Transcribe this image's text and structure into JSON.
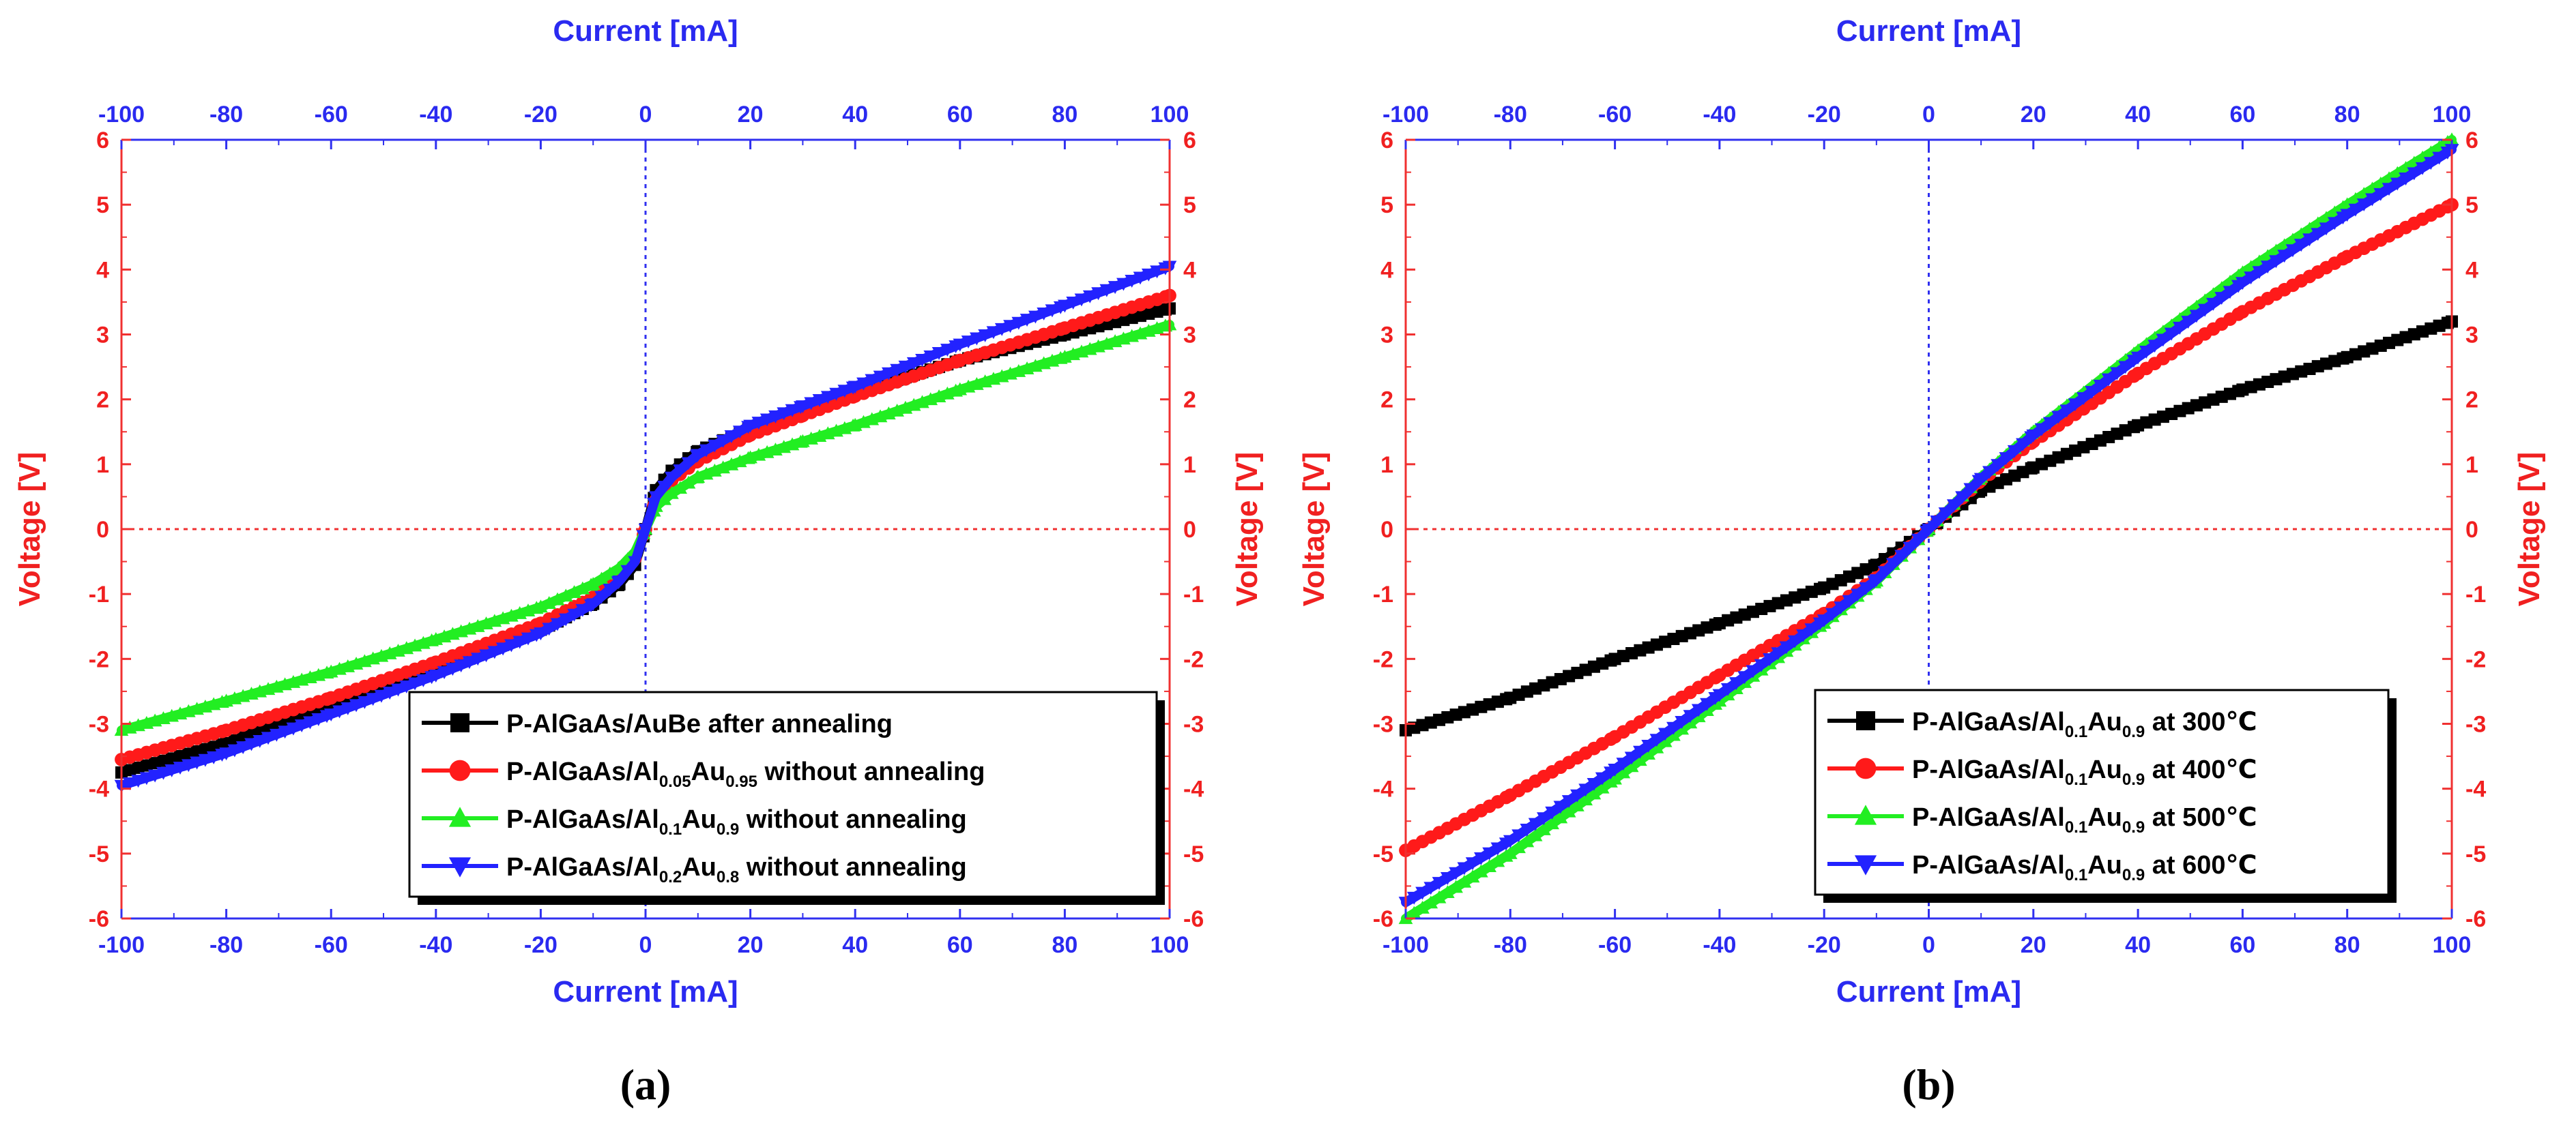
{
  "chart_data": [
    {
      "type": "line",
      "panel_label": "(a)",
      "xlabel_bottom": "Current [mA]",
      "xlabel_top": "Current [mA]",
      "ylabel_left": "Voltage [V]",
      "ylabel_right": "Voltage [V]",
      "xlim": [
        -100,
        100
      ],
      "ylim": [
        -6,
        6
      ],
      "x_ticks": [
        "-100",
        "-80",
        "-60",
        "-40",
        "-20",
        "0",
        "20",
        "40",
        "60",
        "80",
        "100"
      ],
      "y_ticks": [
        "6",
        "5",
        "4",
        "3",
        "2",
        "1",
        "0",
        "-1",
        "-2",
        "-3",
        "-4",
        "-5",
        "-6"
      ],
      "legend_position": "bottom-right",
      "series": [
        {
          "name": "P-AlGaAs/AuBe after annealing",
          "legend": {
            "pre": "P-AlGaAs/AuBe after annealing",
            "sub1": "",
            "mid": "",
            "sub2": "",
            "post": ""
          },
          "color": "#000000",
          "marker": "square",
          "x": [
            -100,
            -80,
            -60,
            -40,
            -20,
            -10,
            -5,
            -2,
            0,
            2,
            5,
            10,
            20,
            30,
            40,
            60,
            80,
            100
          ],
          "y": [
            -3.75,
            -3.3,
            -2.75,
            -2.2,
            -1.55,
            -1.15,
            -0.85,
            -0.55,
            0.0,
            0.6,
            0.9,
            1.2,
            1.55,
            1.85,
            2.1,
            2.6,
            3.0,
            3.4
          ]
        },
        {
          "name": "P-AlGaAs/Al0.05Au0.95 without annealing",
          "legend": {
            "pre": "P-AlGaAs/Al",
            "sub1": "0.05",
            "mid": "Au",
            "sub2": "0.95",
            "post": " without annealing"
          },
          "color": "#ff1a1a",
          "marker": "circle",
          "x": [
            -100,
            -80,
            -60,
            -40,
            -20,
            -10,
            -5,
            -2,
            0,
            2,
            5,
            10,
            20,
            30,
            40,
            60,
            80,
            100
          ],
          "y": [
            -3.55,
            -3.1,
            -2.6,
            -2.05,
            -1.45,
            -1.05,
            -0.75,
            -0.45,
            0.0,
            0.45,
            0.75,
            1.05,
            1.45,
            1.75,
            2.05,
            2.6,
            3.1,
            3.6
          ]
        },
        {
          "name": "P-AlGaAs/Al0.1Au0.9 without annealing",
          "legend": {
            "pre": "P-AlGaAs/Al",
            "sub1": "0.1",
            "mid": "Au",
            "sub2": "0.9",
            "post": " without annealing"
          },
          "color": "#22ee22",
          "marker": "triangle-up",
          "x": [
            -100,
            -80,
            -60,
            -40,
            -20,
            -10,
            -5,
            -2,
            0,
            2,
            5,
            10,
            20,
            30,
            40,
            60,
            80,
            100
          ],
          "y": [
            -3.1,
            -2.65,
            -2.2,
            -1.7,
            -1.2,
            -0.85,
            -0.6,
            -0.35,
            0.0,
            0.35,
            0.55,
            0.8,
            1.1,
            1.35,
            1.6,
            2.15,
            2.65,
            3.15
          ]
        },
        {
          "name": "P-AlGaAs/Al0.2Au0.8 without annealing",
          "legend": {
            "pre": "P-AlGaAs/Al",
            "sub1": "0.2",
            "mid": "Au",
            "sub2": "0.8",
            "post": " without annealing"
          },
          "color": "#2222ff",
          "marker": "triangle-down",
          "x": [
            -100,
            -80,
            -60,
            -40,
            -20,
            -10,
            -5,
            -2,
            0,
            2,
            5,
            10,
            20,
            30,
            40,
            60,
            80,
            100
          ],
          "y": [
            -3.95,
            -3.45,
            -2.85,
            -2.25,
            -1.6,
            -1.15,
            -0.8,
            -0.5,
            0.0,
            0.5,
            0.8,
            1.15,
            1.6,
            1.9,
            2.2,
            2.85,
            3.45,
            4.05
          ]
        }
      ]
    },
    {
      "type": "line",
      "panel_label": "(b)",
      "xlabel_bottom": "Current [mA]",
      "xlabel_top": "Current [mA]",
      "ylabel_left": "Voltage [V]",
      "ylabel_right": "Voltage [V]",
      "xlim": [
        -100,
        100
      ],
      "ylim": [
        -6,
        6
      ],
      "x_ticks": [
        "-100",
        "-80",
        "-60",
        "-40",
        "-20",
        "0",
        "20",
        "40",
        "60",
        "80",
        "100"
      ],
      "y_ticks": [
        "6",
        "5",
        "4",
        "3",
        "2",
        "1",
        "0",
        "-1",
        "-2",
        "-3",
        "-4",
        "-5",
        "-6"
      ],
      "legend_position": "bottom-right",
      "series": [
        {
          "name": "P-AlGaAs/Al0.1Au0.9 at 300℃",
          "legend": {
            "pre": "P-AlGaAs/Al",
            "sub1": "0.1",
            "mid": "Au",
            "sub2": "0.9",
            "post": " at 300℃"
          },
          "color": "#000000",
          "marker": "square",
          "x": [
            -100,
            -80,
            -60,
            -40,
            -20,
            -10,
            0,
            10,
            20,
            40,
            60,
            80,
            100
          ],
          "y": [
            -3.1,
            -2.6,
            -2.0,
            -1.45,
            -0.9,
            -0.55,
            0.0,
            0.6,
            0.95,
            1.6,
            2.15,
            2.65,
            3.2
          ]
        },
        {
          "name": "P-AlGaAs/Al0.1Au0.9 at 400℃",
          "legend": {
            "pre": "P-AlGaAs/Al",
            "sub1": "0.1",
            "mid": "Au",
            "sub2": "0.9",
            "post": " at 400℃"
          },
          "color": "#ff1a1a",
          "marker": "circle",
          "x": [
            -100,
            -80,
            -60,
            -40,
            -20,
            -10,
            0,
            10,
            20,
            40,
            60,
            80,
            100
          ],
          "y": [
            -4.95,
            -4.1,
            -3.2,
            -2.25,
            -1.3,
            -0.75,
            0.0,
            0.75,
            1.35,
            2.4,
            3.35,
            4.2,
            5.0
          ]
        },
        {
          "name": "P-AlGaAs/Al0.1Au0.9 at 500℃",
          "legend": {
            "pre": "P-AlGaAs/Al",
            "sub1": "0.1",
            "mid": "Au",
            "sub2": "0.9",
            "post": " at 500℃"
          },
          "color": "#22ee22",
          "marker": "triangle-up",
          "x": [
            -100,
            -80,
            -60,
            -40,
            -20,
            -10,
            0,
            10,
            20,
            40,
            60,
            80,
            100
          ],
          "y": [
            -6.0,
            -5.0,
            -3.85,
            -2.65,
            -1.45,
            -0.8,
            0.0,
            0.8,
            1.5,
            2.75,
            3.95,
            5.0,
            6.0
          ]
        },
        {
          "name": "P-AlGaAs/Al0.1Au0.9 at 600℃",
          "legend": {
            "pre": "P-AlGaAs/Al",
            "sub1": "0.1",
            "mid": "Au",
            "sub2": "0.9",
            "post": " at 600℃"
          },
          "color": "#2222ff",
          "marker": "triangle-down",
          "x": [
            -100,
            -80,
            -60,
            -40,
            -20,
            -10,
            0,
            10,
            20,
            40,
            60,
            80,
            100
          ],
          "y": [
            -5.75,
            -4.8,
            -3.7,
            -2.55,
            -1.4,
            -0.78,
            0.0,
            0.78,
            1.45,
            2.65,
            3.8,
            4.85,
            5.85
          ]
        }
      ]
    }
  ]
}
